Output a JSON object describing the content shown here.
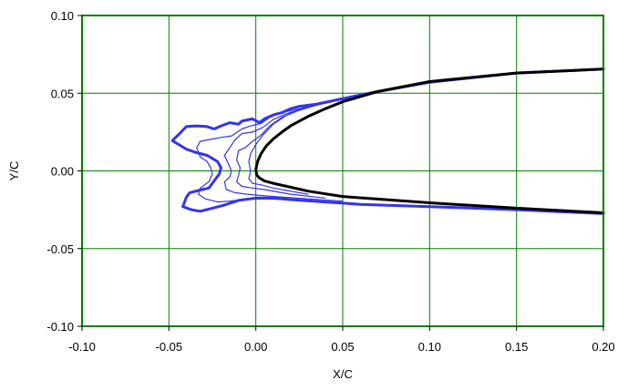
{
  "chart_data": {
    "type": "line",
    "title": "",
    "xlabel": "X/C",
    "ylabel": "Y/C",
    "xlim": [
      -0.1,
      0.2
    ],
    "ylim": [
      -0.1,
      0.1
    ],
    "x_ticks": [
      -0.1,
      -0.05,
      0.0,
      0.05,
      0.1,
      0.15,
      0.2
    ],
    "y_ticks": [
      -0.1,
      -0.05,
      0.0,
      0.05,
      0.1
    ],
    "x_tick_labels": [
      "-0.10",
      "-0.05",
      "0.00",
      "0.05",
      "0.10",
      "0.15",
      "0.20"
    ],
    "y_tick_labels": [
      "-0.10",
      "-0.05",
      "0.00",
      "0.05",
      "0.10"
    ],
    "grid": true,
    "colors": {
      "grid": "#008000",
      "airfoil": "#000000",
      "ice": "#3333ee"
    },
    "series": [
      {
        "role": "ice-outer",
        "width": 3,
        "points": [
          [
            0.2,
            0.0655
          ],
          [
            0.15,
            0.063
          ],
          [
            0.1,
            0.057
          ],
          [
            0.07,
            0.051
          ],
          [
            0.05,
            0.0465
          ],
          [
            0.035,
            0.043
          ],
          [
            0.025,
            0.0415
          ],
          [
            0.02,
            0.04
          ],
          [
            0.015,
            0.0375
          ],
          [
            0.01,
            0.036
          ],
          [
            0.005,
            0.0335
          ],
          [
            0.002,
            0.031
          ],
          [
            -0.002,
            0.0335
          ],
          [
            -0.008,
            0.032
          ],
          [
            -0.01,
            0.03
          ],
          [
            -0.015,
            0.031
          ],
          [
            -0.02,
            0.029
          ],
          [
            -0.024,
            0.027
          ],
          [
            -0.028,
            0.0285
          ],
          [
            -0.034,
            0.029
          ],
          [
            -0.04,
            0.0285
          ],
          [
            -0.043,
            0.025
          ],
          [
            -0.048,
            0.0195
          ],
          [
            -0.04,
            0.014
          ],
          [
            -0.035,
            0.012
          ],
          [
            -0.028,
            0.01
          ],
          [
            -0.022,
            0.006
          ],
          [
            -0.02,
            0.002
          ],
          [
            -0.021,
            -0.002
          ],
          [
            -0.025,
            -0.008
          ],
          [
            -0.027,
            -0.011
          ],
          [
            -0.031,
            -0.012
          ],
          [
            -0.038,
            -0.014
          ],
          [
            -0.04,
            -0.017
          ],
          [
            -0.042,
            -0.023
          ],
          [
            -0.037,
            -0.025
          ],
          [
            -0.032,
            -0.026
          ],
          [
            -0.025,
            -0.024
          ],
          [
            -0.018,
            -0.022
          ],
          [
            -0.01,
            -0.019
          ],
          [
            0.0,
            -0.0175
          ],
          [
            0.01,
            -0.0175
          ],
          [
            0.02,
            -0.0185
          ],
          [
            0.04,
            -0.02
          ],
          [
            0.06,
            -0.0215
          ],
          [
            0.1,
            -0.023
          ],
          [
            0.15,
            -0.025
          ],
          [
            0.2,
            -0.0275
          ]
        ]
      },
      {
        "role": "ice-inner-1",
        "width": 1.2,
        "points": [
          [
            0.06,
            0.049
          ],
          [
            0.04,
            0.044
          ],
          [
            0.025,
            0.04
          ],
          [
            0.015,
            0.0375
          ],
          [
            0.008,
            0.0345
          ],
          [
            0.003,
            0.0305
          ],
          [
            -0.003,
            0.029
          ],
          [
            -0.008,
            0.027
          ],
          [
            -0.014,
            0.0225
          ],
          [
            -0.02,
            0.0215
          ],
          [
            -0.025,
            0.0205
          ],
          [
            -0.032,
            0.019
          ],
          [
            -0.034,
            0.015
          ],
          [
            -0.032,
            0.009
          ],
          [
            -0.028,
            0.006
          ],
          [
            -0.026,
            0.002
          ],
          [
            -0.025,
            -0.002
          ],
          [
            -0.027,
            -0.007
          ],
          [
            -0.032,
            -0.011
          ],
          [
            -0.033,
            -0.015
          ],
          [
            -0.029,
            -0.018
          ],
          [
            -0.022,
            -0.02
          ],
          [
            -0.015,
            -0.0195
          ],
          [
            -0.008,
            -0.0185
          ],
          [
            0.005,
            -0.018
          ],
          [
            0.03,
            -0.019
          ],
          [
            0.06,
            -0.021
          ]
        ]
      },
      {
        "role": "ice-inner-2",
        "width": 1.2,
        "points": [
          [
            0.05,
            0.046
          ],
          [
            0.03,
            0.041
          ],
          [
            0.018,
            0.037
          ],
          [
            0.01,
            0.033
          ],
          [
            0.004,
            0.028
          ],
          [
            -0.002,
            0.025
          ],
          [
            -0.008,
            0.024
          ],
          [
            -0.012,
            0.02
          ],
          [
            -0.015,
            0.015
          ],
          [
            -0.018,
            0.01
          ],
          [
            -0.016,
            0.005
          ],
          [
            -0.014,
            0.0
          ],
          [
            -0.015,
            -0.004
          ],
          [
            -0.018,
            -0.007
          ],
          [
            -0.017,
            -0.012
          ],
          [
            -0.012,
            -0.014
          ],
          [
            -0.005,
            -0.015
          ],
          [
            0.005,
            -0.016
          ],
          [
            0.03,
            -0.018
          ],
          [
            0.05,
            -0.0195
          ]
        ]
      },
      {
        "role": "ice-inner-3",
        "width": 1.2,
        "points": [
          [
            0.04,
            0.044
          ],
          [
            0.025,
            0.039
          ],
          [
            0.015,
            0.0345
          ],
          [
            0.008,
            0.029
          ],
          [
            0.003,
            0.023
          ],
          [
            -0.002,
            0.019
          ],
          [
            -0.006,
            0.015
          ],
          [
            -0.01,
            0.013
          ],
          [
            -0.011,
            0.007
          ],
          [
            -0.009,
            0.002
          ],
          [
            -0.01,
            -0.003
          ],
          [
            -0.011,
            -0.007
          ],
          [
            -0.008,
            -0.01
          ],
          [
            -0.002,
            -0.011
          ],
          [
            0.005,
            -0.012
          ],
          [
            0.02,
            -0.015
          ],
          [
            0.04,
            -0.0175
          ]
        ]
      },
      {
        "role": "ice-inner-4",
        "width": 1.2,
        "points": [
          [
            0.03,
            0.042
          ],
          [
            0.018,
            0.036
          ],
          [
            0.01,
            0.03
          ],
          [
            0.004,
            0.023
          ],
          [
            0.0,
            0.017
          ],
          [
            -0.003,
            0.011
          ],
          [
            -0.004,
            0.006
          ],
          [
            -0.003,
            0.0
          ],
          [
            -0.004,
            -0.005
          ],
          [
            -0.002,
            -0.008
          ],
          [
            0.003,
            -0.009
          ],
          [
            0.01,
            -0.011
          ],
          [
            0.03,
            -0.015
          ]
        ]
      },
      {
        "role": "airfoil",
        "width": 3,
        "points": [
          [
            0.2,
            0.0655
          ],
          [
            0.15,
            0.063
          ],
          [
            0.1,
            0.0575
          ],
          [
            0.07,
            0.051
          ],
          [
            0.05,
            0.0445
          ],
          [
            0.04,
            0.04
          ],
          [
            0.03,
            0.035
          ],
          [
            0.02,
            0.029
          ],
          [
            0.015,
            0.025
          ],
          [
            0.01,
            0.0205
          ],
          [
            0.006,
            0.016
          ],
          [
            0.003,
            0.011
          ],
          [
            0.001,
            0.006
          ],
          [
            0.0,
            0.001
          ],
          [
            0.0005,
            -0.0025
          ],
          [
            0.002,
            -0.0045
          ],
          [
            0.005,
            -0.0065
          ],
          [
            0.01,
            -0.008
          ],
          [
            0.02,
            -0.0105
          ],
          [
            0.03,
            -0.013
          ],
          [
            0.05,
            -0.0165
          ],
          [
            0.1,
            -0.0205
          ],
          [
            0.15,
            -0.024
          ],
          [
            0.2,
            -0.027
          ]
        ]
      }
    ]
  }
}
